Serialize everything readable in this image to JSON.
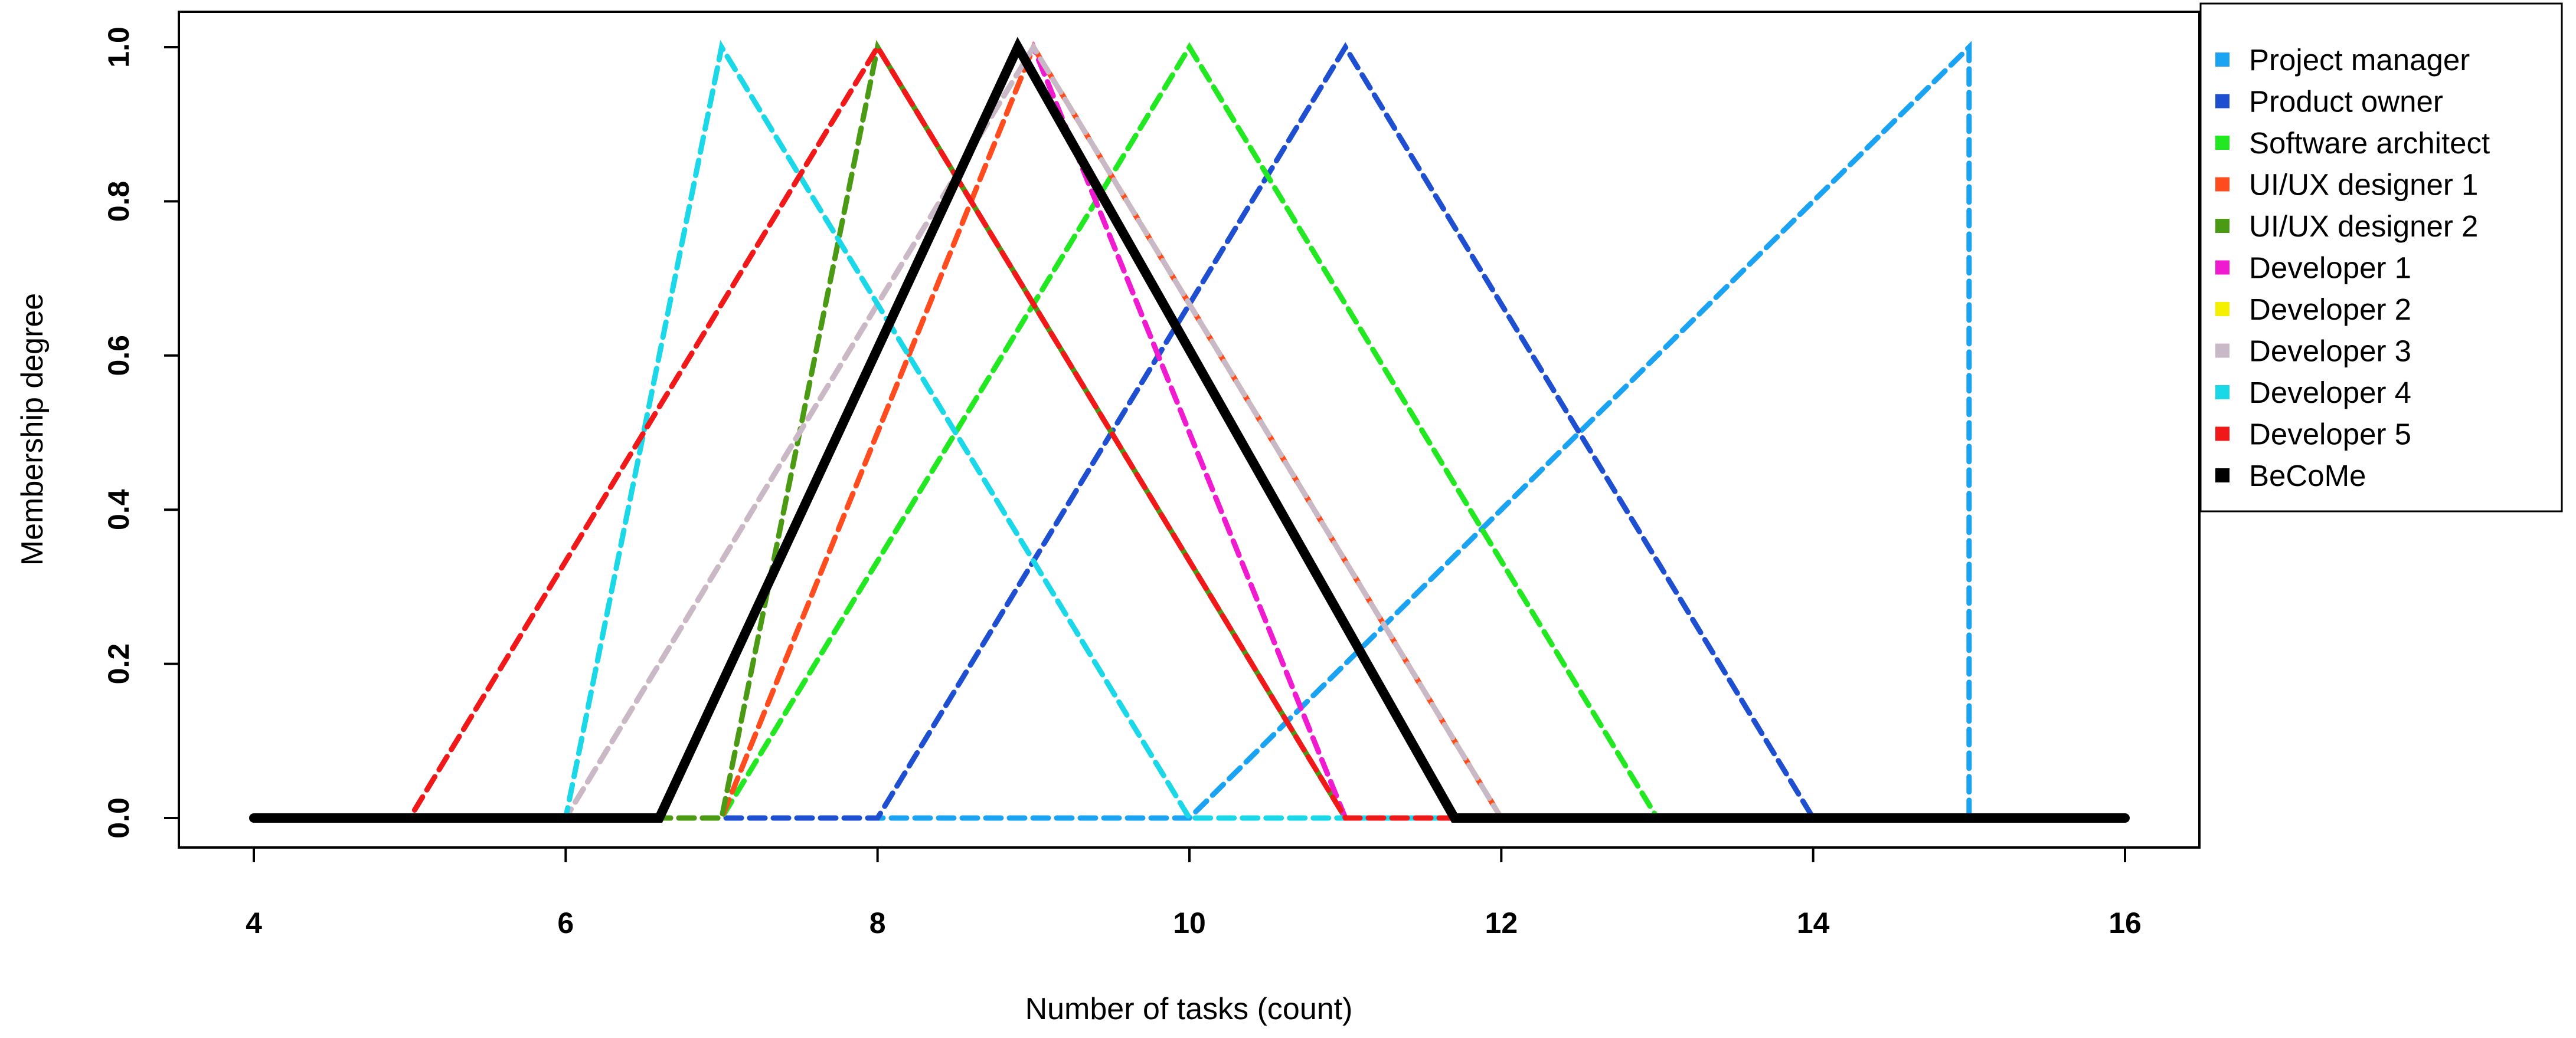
{
  "chart_data": {
    "type": "line",
    "title": "",
    "xlabel": "Number of tasks (count)",
    "ylabel": "Membership degree",
    "xlim": [
      4,
      16
    ],
    "ylim": [
      0,
      1
    ],
    "x_ticks": [
      "4",
      "6",
      "8",
      "10",
      "12",
      "14",
      "16"
    ],
    "y_ticks": [
      "0.0",
      "0.2",
      "0.4",
      "0.6",
      "0.8",
      "1.0"
    ],
    "grid": false,
    "legend_position": "top-right, outside plot",
    "series": [
      {
        "name": "Project manager",
        "color": "#1aa3f2",
        "style": "dashed",
        "x": [
          4,
          10,
          15,
          15,
          16
        ],
        "y": [
          0,
          0,
          1,
          0,
          0
        ]
      },
      {
        "name": "Product owner",
        "color": "#1f4fd1",
        "style": "dashed",
        "x": [
          4,
          8,
          11,
          14,
          16
        ],
        "y": [
          0,
          0,
          1,
          0,
          0
        ]
      },
      {
        "name": "Software architect",
        "color": "#22e822",
        "style": "dashed",
        "x": [
          4,
          7,
          10,
          13,
          16
        ],
        "y": [
          0,
          0,
          1,
          0,
          0
        ]
      },
      {
        "name": "UI/UX designer 1",
        "color": "#ff4c1f",
        "style": "dashed",
        "x": [
          4,
          7,
          9,
          12,
          16
        ],
        "y": [
          0,
          0,
          1,
          0,
          0
        ]
      },
      {
        "name": "UI/UX designer 2",
        "color": "#4a9a14",
        "style": "dashed",
        "x": [
          4,
          7,
          8,
          11,
          16
        ],
        "y": [
          0,
          0,
          1,
          0,
          0
        ]
      },
      {
        "name": "Developer 1",
        "color": "#f01ad0",
        "style": "dashed",
        "x": [
          4,
          6,
          9,
          11,
          16
        ],
        "y": [
          0,
          0,
          1,
          0,
          0
        ]
      },
      {
        "name": "Developer 2",
        "color": "#f5f000",
        "style": "dashed",
        "x": [
          4,
          6,
          9,
          12,
          16
        ],
        "y": [
          0,
          0,
          1,
          0,
          0
        ]
      },
      {
        "name": "Developer 3",
        "color": "#c8b8c8",
        "style": "dashed",
        "x": [
          4,
          6,
          9,
          12,
          16
        ],
        "y": [
          0,
          0,
          1,
          0,
          0
        ]
      },
      {
        "name": "Developer 4",
        "color": "#1ad8e8",
        "style": "dashed",
        "x": [
          4,
          6,
          7,
          10,
          16
        ],
        "y": [
          0,
          0,
          1,
          0,
          0
        ]
      },
      {
        "name": "Developer 5",
        "color": "#f01818",
        "style": "dashed",
        "x": [
          4,
          5,
          8,
          11,
          16
        ],
        "y": [
          0,
          0,
          1,
          0,
          0
        ]
      },
      {
        "name": "BeCoMe",
        "color": "#000000",
        "style": "solid",
        "x": [
          4,
          6.6,
          8.9,
          11.7,
          16
        ],
        "y": [
          0,
          0,
          1,
          0,
          0
        ]
      }
    ]
  }
}
